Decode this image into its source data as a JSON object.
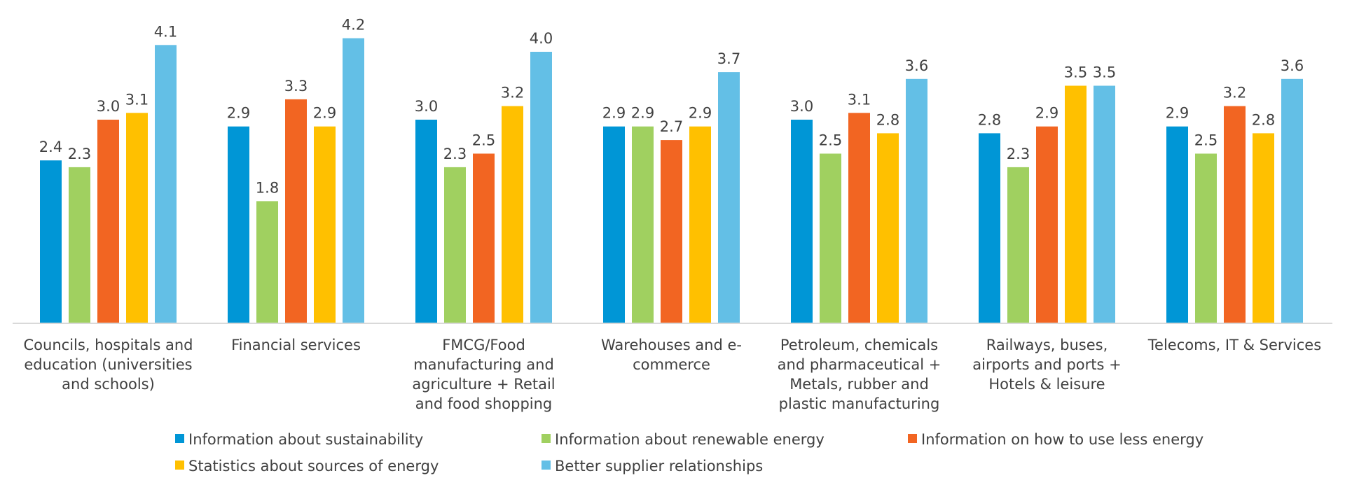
{
  "chart_data": {
    "type": "bar",
    "title": "",
    "xlabel": "",
    "ylabel": "",
    "ylim": [
      0,
      4.5
    ],
    "grid": false,
    "legend_position": "bottom",
    "categories": [
      [
        "Councils, hospitals and",
        "education (universities",
        "and schools)"
      ],
      [
        "Financial services"
      ],
      [
        "FMCG/Food",
        "manufacturing and",
        "agriculture + Retail",
        "and food shopping"
      ],
      [
        "Warehouses and e-",
        "commerce"
      ],
      [
        "Petroleum, chemicals",
        "and pharmaceutical +",
        "Metals, rubber and",
        "plastic manufacturing"
      ],
      [
        "Railways, buses,",
        "airports and ports +",
        "Hotels & leisure"
      ],
      [
        "Telecoms, IT & Services"
      ]
    ],
    "series": [
      {
        "name": "Information about sustainability",
        "color": "#0096D6",
        "values": [
          2.4,
          2.9,
          3.0,
          2.9,
          3.0,
          2.8,
          2.9
        ]
      },
      {
        "name": "Information about renewable energy",
        "color": "#A0D060",
        "values": [
          2.3,
          1.8,
          2.3,
          2.9,
          2.5,
          2.3,
          2.5
        ]
      },
      {
        "name": "Information on how to use less energy",
        "color": "#F26522",
        "values": [
          3.0,
          3.3,
          2.5,
          2.7,
          3.1,
          2.9,
          3.2
        ]
      },
      {
        "name": "Statistics about sources of energy",
        "color": "#FFC000",
        "values": [
          3.1,
          2.9,
          3.2,
          2.9,
          2.8,
          3.5,
          2.8
        ]
      },
      {
        "name": "Better supplier relationships",
        "color": "#63BFE6",
        "values": [
          4.1,
          4.2,
          4.0,
          3.7,
          3.6,
          3.5,
          3.6
        ]
      }
    ]
  }
}
